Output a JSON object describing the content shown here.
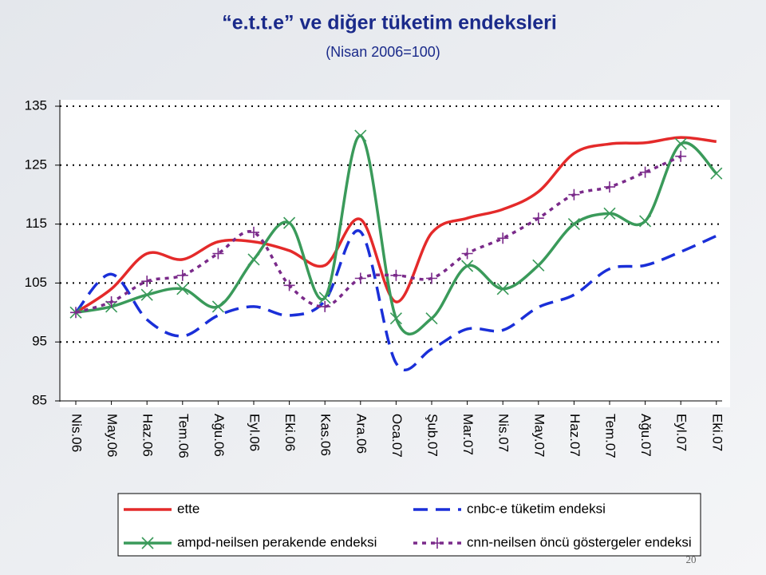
{
  "chart_data": {
    "type": "line",
    "title": "“e.t.t.e” ve diğer tüketim endeksleri",
    "subtitle": "(Nisan 2006=100)",
    "page_number": "20",
    "categories": [
      "Nis.06",
      "May.06",
      "Haz.06",
      "Tem.06",
      "Ağu.06",
      "Eyl.06",
      "Eki.06",
      "Kas.06",
      "Ara.06",
      "Oca.07",
      "Şub.07",
      "Mar.07",
      "Nis.07",
      "May.07",
      "Haz.07",
      "Tem.07",
      "Ağu.07",
      "Eyl.07",
      "Eki.07"
    ],
    "ylim": [
      85,
      135
    ],
    "yticks": [
      85,
      95,
      105,
      115,
      125,
      135
    ],
    "grid": true,
    "legend": "bottom",
    "series": [
      {
        "name": "ette",
        "color": "#e42a2a",
        "style": "solid",
        "marker": "none",
        "values": [
          100,
          104,
          110,
          109,
          112,
          112,
          110.5,
          108,
          115.8,
          101.8,
          113.5,
          116,
          117.5,
          120.5,
          127,
          128.6,
          128.8,
          129.7,
          129
        ]
      },
      {
        "name": "cnbc-e tüketim endeksi",
        "color": "#1a2fd8",
        "style": "dashed",
        "marker": "none",
        "values": [
          100,
          106.5,
          98.8,
          96,
          99.5,
          101,
          99.5,
          102,
          113.7,
          91.4,
          93.8,
          97.2,
          97,
          100.9,
          103,
          107.4,
          108,
          110.3,
          113
        ]
      },
      {
        "name": "ampd-neilsen perakende endeksi",
        "color": "#3a9a5a",
        "style": "solid",
        "marker": "x",
        "values": [
          100,
          101,
          103,
          104,
          101,
          109,
          115.2,
          102.5,
          130,
          99,
          99,
          107.9,
          104,
          108,
          115,
          116.8,
          115.5,
          128.6,
          123.6
        ]
      },
      {
        "name": "cnn-neilsen öncü göstergeler endeksi",
        "color": "#7a2a8a",
        "style": "dotted",
        "marker": "plus",
        "values": [
          100,
          101.8,
          105.3,
          106.3,
          110,
          113.6,
          104.6,
          101,
          105.8,
          106.3,
          105.8,
          110,
          112.6,
          116,
          120,
          121.3,
          123.8,
          126.5,
          null
        ]
      }
    ]
  }
}
